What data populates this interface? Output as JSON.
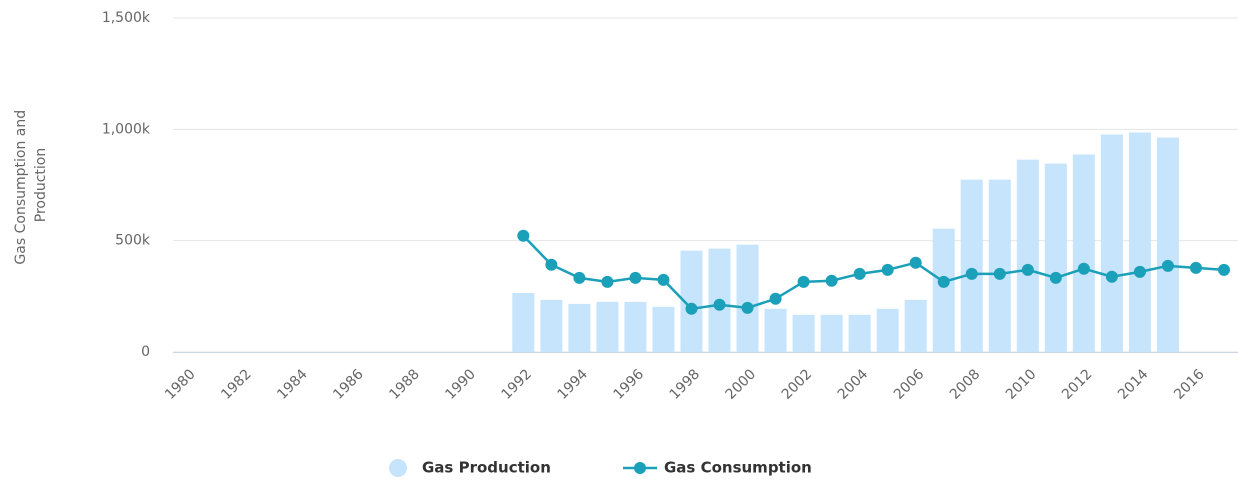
{
  "chart_data": {
    "type": "bar-line",
    "ylabel": [
      "Gas Consumption and",
      "Production"
    ],
    "categories": [
      "1980",
      null,
      "1982",
      null,
      "1984",
      null,
      "1986",
      null,
      "1988",
      null,
      "1990",
      null,
      "1992",
      null,
      "1994",
      null,
      "1996",
      null,
      "1998",
      null,
      "2000",
      null,
      "2002",
      null,
      "2004",
      null,
      "2006",
      null,
      "2008",
      null,
      "2010",
      null,
      "2012",
      null,
      "2014",
      null,
      "2016",
      null
    ],
    "series": [
      {
        "name": "Gas Production",
        "type": "bar",
        "color": "#c6e4fb",
        "values": [
          null,
          null,
          null,
          null,
          null,
          null,
          null,
          null,
          null,
          null,
          null,
          null,
          265000,
          234000,
          216000,
          225000,
          225000,
          203000,
          455000,
          464000,
          482000,
          194000,
          167000,
          167000,
          167000,
          194000,
          234000,
          554000,
          774000,
          774000,
          864000,
          846000,
          887000,
          977000,
          986000,
          963000,
          null,
          null
        ]
      },
      {
        "name": "Gas Consumption",
        "type": "line",
        "color": "#1aa0b8",
        "values": [
          null,
          null,
          null,
          null,
          null,
          null,
          null,
          null,
          null,
          null,
          null,
          null,
          522000,
          392000,
          333000,
          315000,
          333000,
          324000,
          194000,
          212000,
          198000,
          239000,
          315000,
          320000,
          351000,
          369000,
          401000,
          315000,
          351000,
          351000,
          369000,
          333000,
          374000,
          338000,
          360000,
          387000,
          378000,
          369000
        ]
      }
    ],
    "ylim": [
      0,
      1500000
    ],
    "yticks": [
      0,
      {
        "value": 500000,
        "label": "500k"
      },
      {
        "value": 1000000,
        "label": "1,000k"
      },
      {
        "value": 1500000,
        "label": "1,500k"
      }
    ],
    "grid": true,
    "legend": "bottom"
  }
}
